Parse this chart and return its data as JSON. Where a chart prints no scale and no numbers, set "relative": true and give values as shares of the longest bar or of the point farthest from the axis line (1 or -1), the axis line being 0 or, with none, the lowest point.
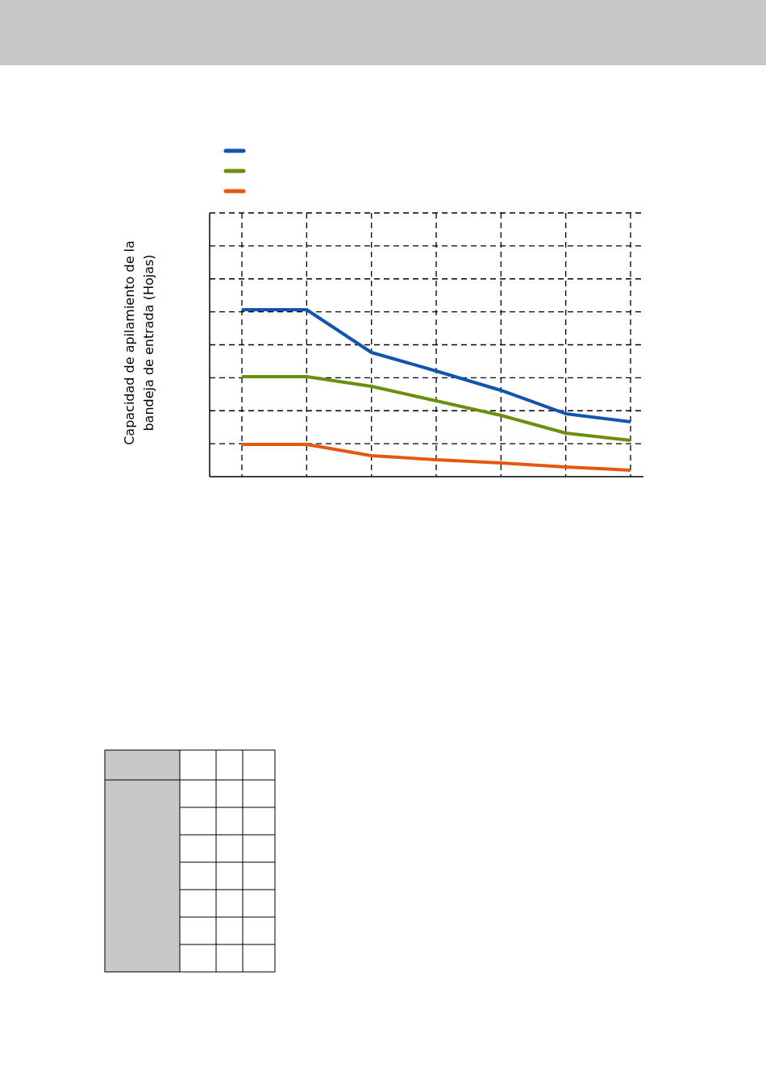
{
  "chart_data": {
    "type": "line",
    "ylabel": "Capacidad de apilamiento de la\nbandeja de entrada (Hojas)",
    "relative": true,
    "categories": [
      null,
      null,
      null,
      null,
      null,
      null,
      null
    ],
    "grid": true,
    "line_style": "solid",
    "marker": "none",
    "series": [
      {
        "color": "#1155b0",
        "values": [
          1,
          1,
          0.744,
          0.633,
          0.517,
          0.377,
          0.329
        ]
      },
      {
        "color": "#6b8e0f",
        "values": [
          0.599,
          0.599,
          0.541,
          0.454,
          0.367,
          0.261,
          0.217
        ]
      },
      {
        "color": "#e8570f",
        "values": [
          0.193,
          0.193,
          0.126,
          0.101,
          0.082,
          0.058,
          0.039
        ]
      }
    ]
  }
}
